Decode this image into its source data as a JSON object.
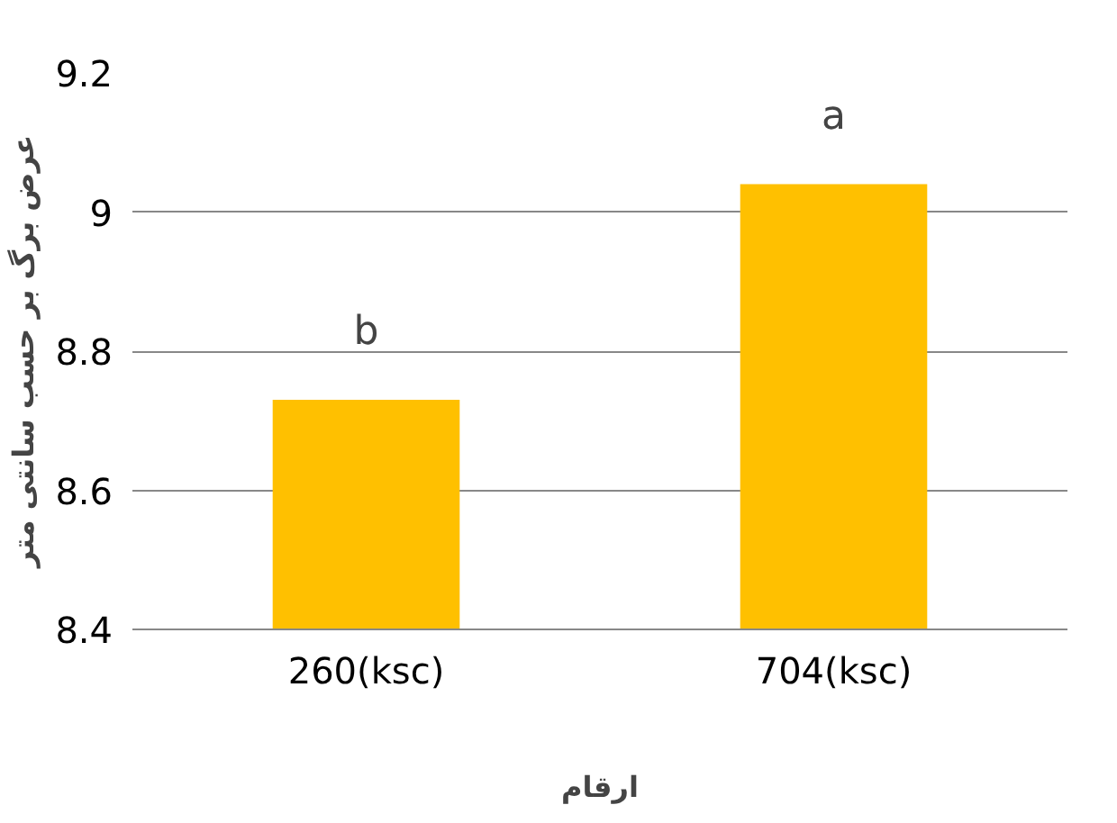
{
  "chart_data": {
    "type": "bar",
    "categories": [
      "260(ksc)",
      "704(ksc)"
    ],
    "values": [
      8.73,
      9.04
    ],
    "color": "#ffc000",
    "xlabel": "ارقام",
    "ylabel": "عرض برگ بر حسب سانتی متر",
    "ylim": [
      8.4,
      9.2
    ],
    "yticks": [
      8.4,
      8.6,
      8.8,
      9,
      9.2
    ],
    "grid": "y",
    "annotations": [
      {
        "text": "b",
        "x": "260(ksc)",
        "y": 8.73
      },
      {
        "text": "a",
        "x": "704(ksc)",
        "y": 9.04
      }
    ]
  }
}
